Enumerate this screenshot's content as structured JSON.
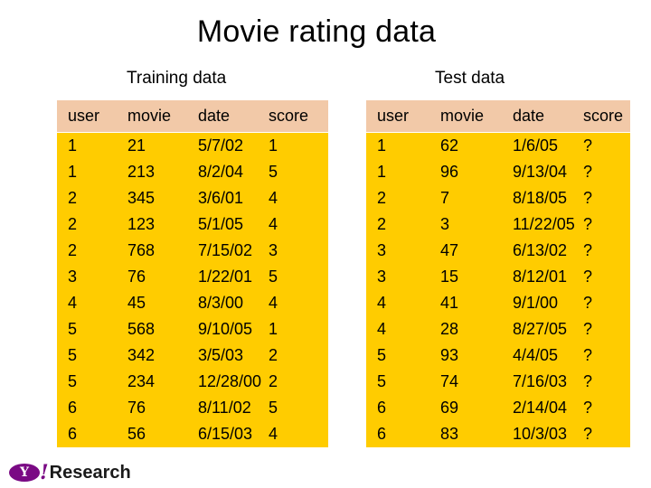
{
  "title": "Movie rating data",
  "training": {
    "subtitle": "Training data",
    "headers": [
      "user",
      "movie",
      "date",
      "score"
    ],
    "rows": [
      [
        "1",
        "21",
        "5/7/02",
        "1"
      ],
      [
        "1",
        "213",
        "8/2/04",
        "5"
      ],
      [
        "2",
        "345",
        "3/6/01",
        "4"
      ],
      [
        "2",
        "123",
        "5/1/05",
        "4"
      ],
      [
        "2",
        "768",
        "7/15/02",
        "3"
      ],
      [
        "3",
        "76",
        "1/22/01",
        "5"
      ],
      [
        "4",
        "45",
        "8/3/00",
        "4"
      ],
      [
        "5",
        "568",
        "9/10/05",
        "1"
      ],
      [
        "5",
        "342",
        "3/5/03",
        "2"
      ],
      [
        "5",
        "234",
        "12/28/00",
        "2"
      ],
      [
        "6",
        "76",
        "8/11/02",
        "5"
      ],
      [
        "6",
        "56",
        "6/15/03",
        "4"
      ]
    ]
  },
  "test": {
    "subtitle": "Test data",
    "headers": [
      "user",
      "movie",
      "date",
      "score"
    ],
    "rows": [
      [
        "1",
        "62",
        "1/6/05",
        "?"
      ],
      [
        "1",
        "96",
        "9/13/04",
        "?"
      ],
      [
        "2",
        "7",
        "8/18/05",
        "?"
      ],
      [
        "2",
        "3",
        "11/22/05",
        "?"
      ],
      [
        "3",
        "47",
        "6/13/02",
        "?"
      ],
      [
        "3",
        "15",
        "8/12/01",
        "?"
      ],
      [
        "4",
        "41",
        "9/1/00",
        "?"
      ],
      [
        "4",
        "28",
        "8/27/05",
        "?"
      ],
      [
        "5",
        "93",
        "4/4/05",
        "?"
      ],
      [
        "5",
        "74",
        "7/16/03",
        "?"
      ],
      [
        "6",
        "69",
        "2/14/04",
        "?"
      ],
      [
        "6",
        "83",
        "10/3/03",
        "?"
      ]
    ]
  },
  "logo": {
    "badge": "Y",
    "bang": "!",
    "text": "Research"
  },
  "colors": {
    "header_bg": "#f2c9a8",
    "row_bg": "#ffcc00",
    "logo_purple": "#7a0a84"
  }
}
